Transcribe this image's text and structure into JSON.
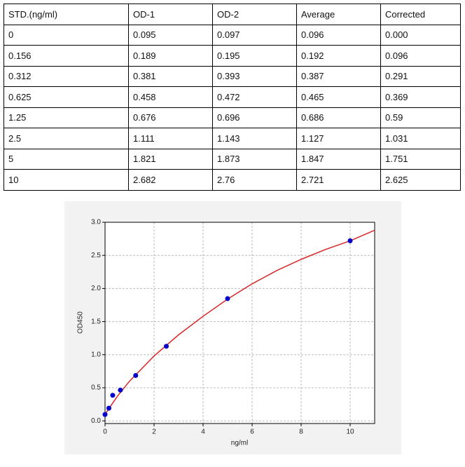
{
  "table": {
    "header": [
      "STD.(ng/ml)",
      "OD-1",
      "OD-2",
      "Average",
      "Corrected"
    ],
    "rows": [
      [
        "0",
        "0.095",
        "0.097",
        "0.096",
        "0.000"
      ],
      [
        "0.156",
        "0.189",
        "0.195",
        "0.192",
        "0.096"
      ],
      [
        "0.312",
        "0.381",
        "0.393",
        "0.387",
        "0.291"
      ],
      [
        "0.625",
        "0.458",
        "0.472",
        "0.465",
        "0.369"
      ],
      [
        "1.25",
        "0.676",
        "0.696",
        "0.686",
        "0.59"
      ],
      [
        "2.5",
        "1.111",
        "1.143",
        "1.127",
        "1.031"
      ],
      [
        "5",
        "1.821",
        "1.873",
        "1.847",
        "1.751"
      ],
      [
        "10",
        "2.682",
        "2.76",
        "2.721",
        "2.625"
      ]
    ]
  },
  "chart_data": {
    "type": "scatter",
    "xlabel": "ng/ml",
    "ylabel": "OD450",
    "x": [
      0,
      0.156,
      0.312,
      0.625,
      1.25,
      2.5,
      5,
      10
    ],
    "values": [
      0.096,
      0.192,
      0.387,
      0.465,
      0.686,
      1.127,
      1.847,
      2.721
    ],
    "color": "#0000cc",
    "fit": {
      "color": "#d62728",
      "x": [
        0,
        0.5,
        1,
        2,
        3,
        4,
        5,
        6,
        7,
        8,
        9,
        10,
        11
      ],
      "values": [
        0.1,
        0.37,
        0.6,
        0.98,
        1.3,
        1.58,
        1.84,
        2.07,
        2.27,
        2.44,
        2.59,
        2.72,
        2.88
      ]
    },
    "xlim": [
      0,
      11
    ],
    "ylim": [
      -0.04,
      3
    ],
    "xticks": [
      0,
      2,
      4,
      6,
      8,
      10
    ],
    "yticks": [
      {
        "value": 0,
        "label": "0.0"
      },
      0.5,
      {
        "value": 1,
        "label": "1.0"
      },
      1.5,
      {
        "value": 2,
        "label": "2.0"
      },
      2.5,
      {
        "value": 3,
        "label": "3.0"
      }
    ],
    "grid": true
  }
}
